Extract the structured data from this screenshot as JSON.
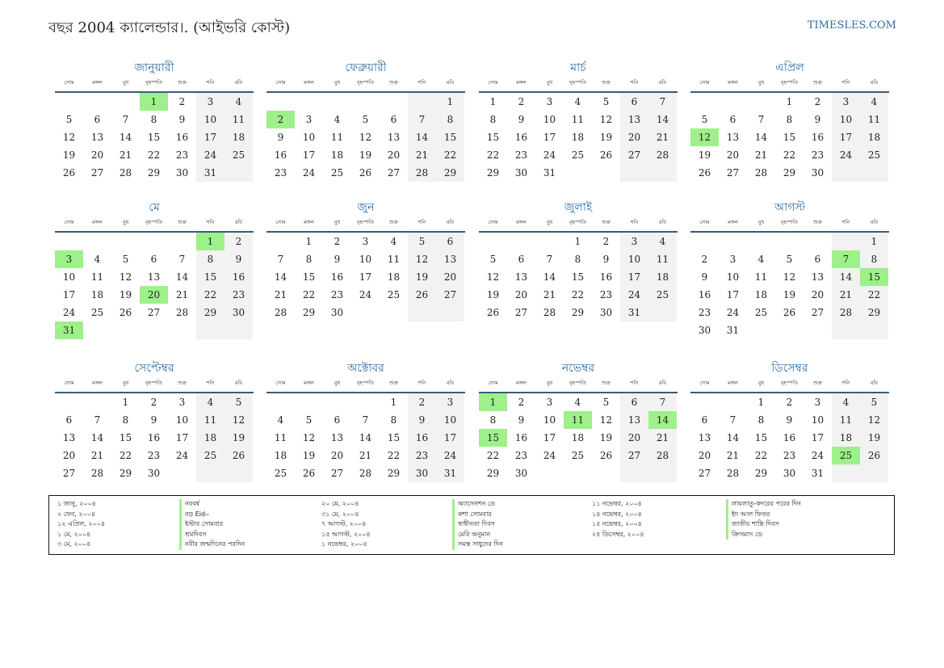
{
  "header": {
    "title": "বছর 2004 ক্যালেন্ডার।. (আইভরি কোস্ট)",
    "brand": "TIMESLES.COM"
  },
  "weekdays": [
    "সোম",
    "মঙ্গল",
    "বুধ",
    "বৃহস্পতি",
    "শুক্র",
    "শনি",
    "রবি"
  ],
  "months": [
    {
      "name": "জানুয়ারী",
      "start": 3,
      "days": 31,
      "holidays": [
        1
      ]
    },
    {
      "name": "ফেব্রুয়ারী",
      "start": 6,
      "days": 29,
      "holidays": [
        2
      ]
    },
    {
      "name": "মার্চ",
      "start": 0,
      "days": 31,
      "holidays": []
    },
    {
      "name": "এপ্রিল",
      "start": 3,
      "days": 30,
      "holidays": [
        12
      ]
    },
    {
      "name": "মে",
      "start": 5,
      "days": 31,
      "holidays": [
        1,
        3,
        20,
        31
      ]
    },
    {
      "name": "জুন",
      "start": 1,
      "days": 30,
      "holidays": []
    },
    {
      "name": "জুলাই",
      "start": 3,
      "days": 31,
      "holidays": []
    },
    {
      "name": "আগস্ট",
      "start": 6,
      "days": 31,
      "holidays": [
        7,
        15
      ]
    },
    {
      "name": "সেপ্টেম্বর",
      "start": 2,
      "days": 30,
      "holidays": []
    },
    {
      "name": "অক্টোবর",
      "start": 4,
      "days": 31,
      "holidays": []
    },
    {
      "name": "নভেম্বর",
      "start": 0,
      "days": 30,
      "holidays": [
        1,
        11,
        14,
        15
      ]
    },
    {
      "name": "ডিসেম্বর",
      "start": 2,
      "days": 31,
      "holidays": [
        25
      ]
    }
  ],
  "legend": [
    [
      {
        "date": "১ জানু, ২০০৪",
        "name": "নববর্ষ"
      },
      {
        "date": "২ ফেব, ২০০৪",
        "name": "বড় Eid০"
      },
      {
        "date": "১২ এপ্রিল, ২০০৪",
        "name": "ইস্টার সোমবার"
      },
      {
        "date": "১ মে, ২০০৪",
        "name": "শ্রমদিবস"
      },
      {
        "date": "৩ মে, ২০০৪",
        "name": "নবীর জন্মদিনের পরদিন"
      }
    ],
    [
      {
        "date": "২০ মে, ২০০৪",
        "name": "অ্যাসেনশন ডে"
      },
      {
        "date": "৩১ মে, ২০০৪",
        "name": "কশা সোমবার"
      },
      {
        "date": "৭ আগস্ট, ২০০৪",
        "name": "স্বাধীনতা দিবস"
      },
      {
        "date": "১৫ আগস্ট, ২০০৪",
        "name": "মেরি অনুমান"
      },
      {
        "date": "১ নভেম্বর, ২০০৪",
        "name": "সমস্ত সাধুদের দিন"
      }
    ],
    [
      {
        "date": "১১ নভেম্বর, ২০০৪",
        "name": "লায়লাতু-কদরের পরের দিন"
      },
      {
        "date": "১৪ নভেম্বর, ২০০৪",
        "name": "ইদ আল ফিতর"
      },
      {
        "date": "১৫ নভেম্বর, ২০০৪",
        "name": "জাতীয় শান্তি দিবস"
      },
      {
        "date": "২৫ ডিসেম্বর, ২০০৪",
        "name": "ক্রিসমাস ডে"
      }
    ]
  ]
}
